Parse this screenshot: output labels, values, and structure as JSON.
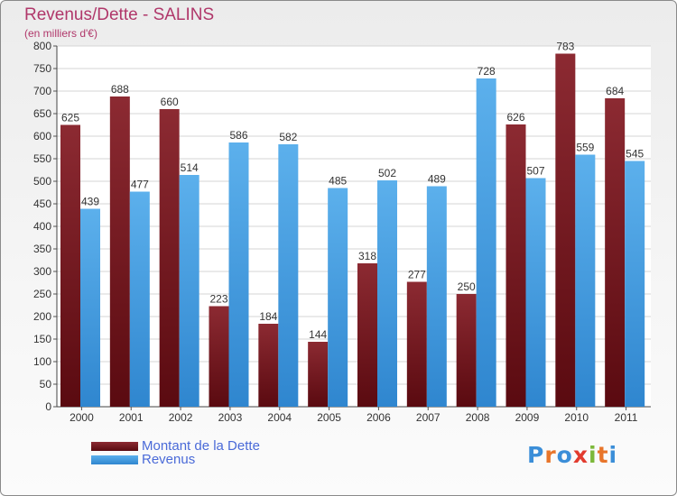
{
  "chart_data": {
    "type": "bar",
    "title": "Revenus/Dette - SALINS",
    "subtitle": "(en milliers d'€)",
    "categories": [
      "2000",
      "2001",
      "2002",
      "2003",
      "2004",
      "2005",
      "2006",
      "2007",
      "2008",
      "2009",
      "2010",
      "2011"
    ],
    "series": [
      {
        "name": "Montant de la Dette",
        "color": "#7a1a24",
        "values": [
          625,
          688,
          660,
          223,
          184,
          144,
          318,
          277,
          250,
          626,
          783,
          684
        ]
      },
      {
        "name": "Revenus",
        "color": "#4aa3e3",
        "values": [
          439,
          477,
          514,
          586,
          582,
          485,
          502,
          489,
          728,
          507,
          559,
          545
        ]
      }
    ],
    "ylim": [
      0,
      800
    ],
    "yticks": [
      0,
      50,
      100,
      150,
      200,
      250,
      300,
      350,
      400,
      450,
      500,
      550,
      600,
      650,
      700,
      750,
      800
    ],
    "grid": true,
    "legend_position": "bottom-left"
  },
  "logo": {
    "letters": [
      {
        "ch": "P",
        "color": "#3b8ed8"
      },
      {
        "ch": "r",
        "color": "#e8752a"
      },
      {
        "ch": "o",
        "color": "#3b8ed8"
      },
      {
        "ch": "x",
        "color": "#e23b2e"
      },
      {
        "ch": "i",
        "color": "#7cb83a"
      },
      {
        "ch": "t",
        "color": "#e8752a"
      },
      {
        "ch": "i",
        "color": "#3b8ed8"
      }
    ]
  }
}
